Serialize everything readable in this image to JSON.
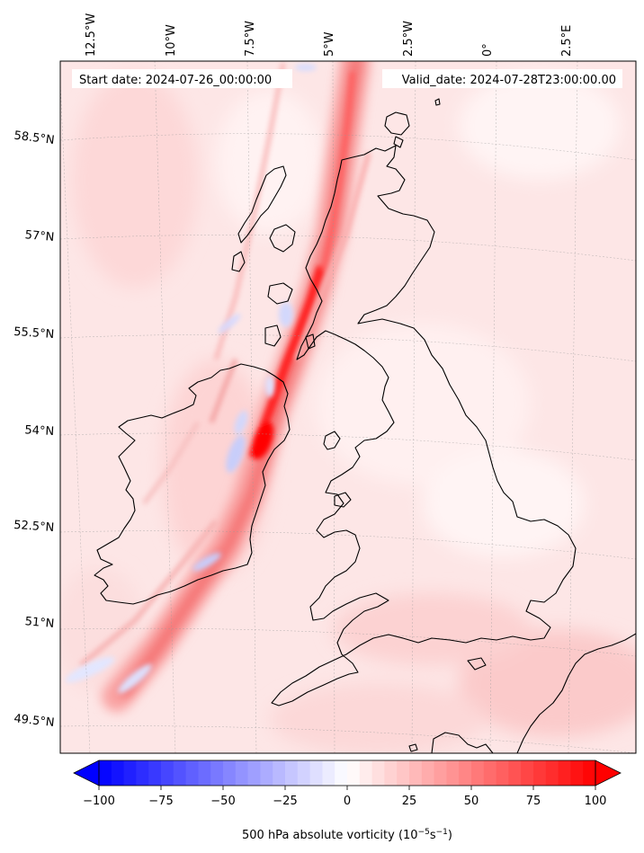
{
  "header": {
    "start_label": "Start date: 2024-07-26_00:00:00",
    "valid_label": "Valid_date: 2024-07-28T23:00:00.00"
  },
  "map": {
    "lon_labels": [
      "12.5°W",
      "10°W",
      "7.5°W",
      "5°W",
      "2.5°W",
      "0°",
      "2.5°E"
    ],
    "lat_labels": [
      "58.5°N",
      "57°N",
      "55.5°N",
      "54°N",
      "52.5°N",
      "51°N",
      "49.5°N"
    ],
    "coastline_color": "#000000",
    "field_background_color": "#fde4e4"
  },
  "colorbar": {
    "ticks": [
      "−100",
      "−75",
      "−50",
      "−25",
      "0",
      "25",
      "50",
      "75",
      "100"
    ],
    "tick_values": [
      -100,
      -75,
      -50,
      -25,
      0,
      25,
      50,
      75,
      100
    ],
    "vmin": -100,
    "vmax": 100,
    "levels": 40,
    "min_color": "#0000ff",
    "mid_color": "#ffffff",
    "max_color": "#ff0000",
    "extend": "both",
    "title_prefix": "500 hPa absolute vorticity (10",
    "title_exp1": "−5",
    "title_mid": "s",
    "title_exp2": "−1",
    "title_suffix": ")"
  }
}
